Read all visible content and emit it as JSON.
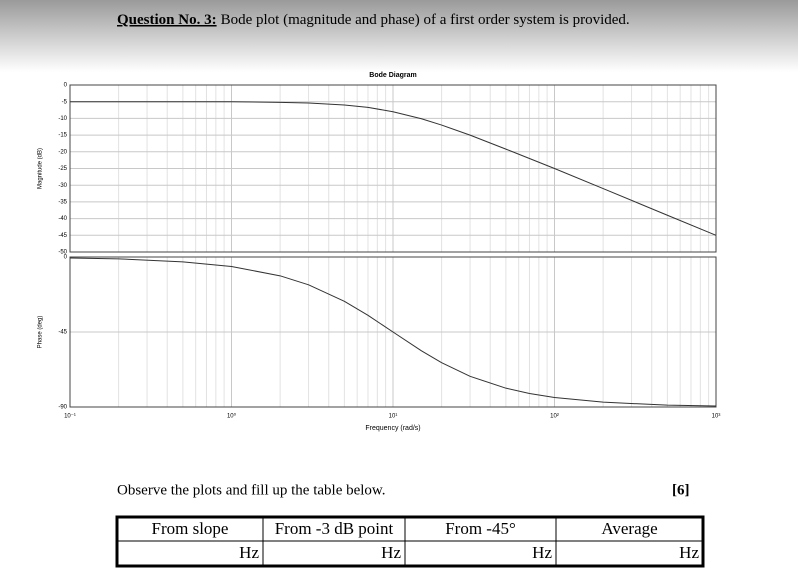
{
  "question": {
    "number": "Question No. 3:",
    "text": "Bode plot (magnitude and phase) of a first order system is provided."
  },
  "chart_data": [
    {
      "type": "line",
      "title": "Bode Diagram",
      "y_label": "Magnitude (dB)",
      "xscale": "log",
      "grid": true,
      "color": "#333333",
      "x": [
        0.1,
        0.2,
        0.5,
        1,
        2,
        3,
        5,
        7,
        10,
        15,
        20,
        30,
        50,
        70,
        100,
        200,
        500,
        1000
      ],
      "values": [
        -5.0,
        -5.0,
        -5.0,
        -5.0,
        -5.2,
        -5.4,
        -6.0,
        -6.7,
        -8.0,
        -10.1,
        -12.0,
        -15.0,
        -19.2,
        -22.0,
        -25.0,
        -31.0,
        -39.0,
        -45.0
      ],
      "xlim": [
        0.1,
        1000
      ],
      "ylim": [
        -50,
        0
      ],
      "yticks": [
        0,
        -5,
        -10,
        -15,
        -20,
        -25,
        -30,
        -35,
        -40,
        -45,
        -50
      ]
    },
    {
      "type": "line",
      "x_label": "Frequency (rad/s)",
      "y_label": "Phase (deg)",
      "xscale": "log",
      "grid": true,
      "color": "#333333",
      "x": [
        0.1,
        0.2,
        0.5,
        1,
        2,
        3,
        5,
        7,
        10,
        15,
        20,
        30,
        50,
        70,
        100,
        200,
        500,
        1000
      ],
      "values": [
        -0.6,
        -1.1,
        -2.9,
        -5.7,
        -11.3,
        -16.7,
        -26.6,
        -35.0,
        -45.0,
        -56.3,
        -63.4,
        -71.6,
        -78.7,
        -81.9,
        -84.3,
        -87.1,
        -88.9,
        -89.4
      ],
      "xlim": [
        0.1,
        1000
      ],
      "ylim": [
        -90,
        0
      ],
      "yticks": [
        0,
        -45,
        -90
      ],
      "xticks": [
        {
          "value": 0.1,
          "label": "10⁻¹"
        },
        {
          "value": 1,
          "label": "10⁰"
        },
        {
          "value": 10,
          "label": "10¹"
        },
        {
          "value": 100,
          "label": "10²"
        },
        {
          "value": 1000,
          "label": "10³"
        }
      ]
    }
  ],
  "instruction": "Observe the plots and fill up the table below.",
  "marks": "[6]",
  "table": {
    "rows": [
      [
        "From slope",
        "From -3 dB point",
        "From -45°",
        "Average"
      ],
      [
        "Hz",
        "Hz",
        "Hz",
        "Hz"
      ]
    ]
  }
}
